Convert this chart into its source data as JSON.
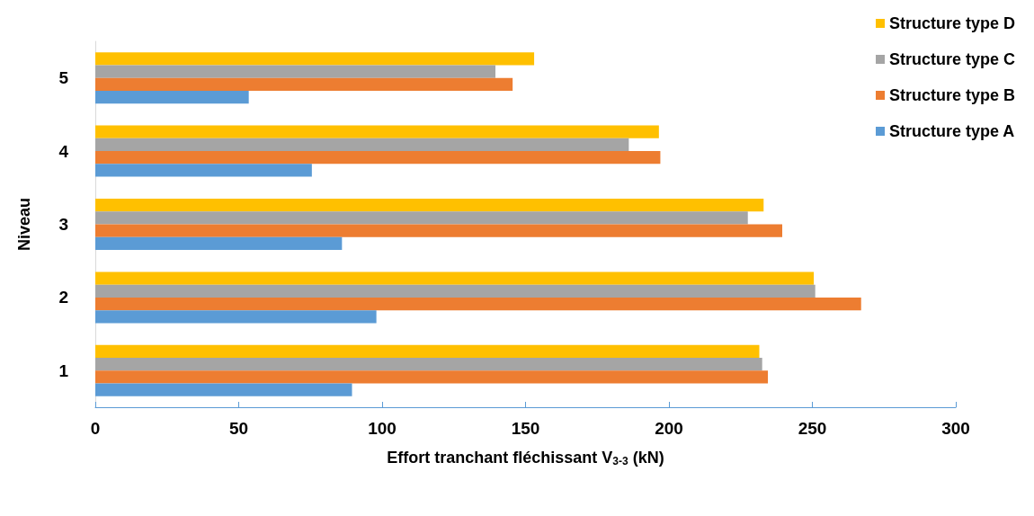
{
  "chart_data": {
    "type": "bar",
    "orientation": "horizontal",
    "xlabel": "Effort tranchant fléchissant V$_{3-3}$ (kN)",
    "ylabel": "Niveau",
    "categories": [
      "5",
      "4",
      "3",
      "2",
      "1"
    ],
    "series": [
      {
        "name": "Structure type A",
        "color": "#5b9bd5",
        "values": [
          53.5,
          75.5,
          86,
          98,
          89.5
        ]
      },
      {
        "name": "Structure type B",
        "color": "#ed7d31",
        "values": [
          145.5,
          197,
          239.5,
          267,
          234.5
        ]
      },
      {
        "name": "Structure type C",
        "color": "#a5a5a5",
        "values": [
          139.5,
          186,
          227.5,
          251,
          232.5
        ]
      },
      {
        "name": "Structure type D",
        "color": "#ffc000",
        "values": [
          153,
          196.5,
          233,
          250.5,
          231.5
        ]
      }
    ],
    "xlim": [
      0,
      300
    ],
    "xticks": [
      0,
      50,
      100,
      150,
      200,
      250,
      300
    ],
    "grid": false,
    "legend": "top right"
  }
}
